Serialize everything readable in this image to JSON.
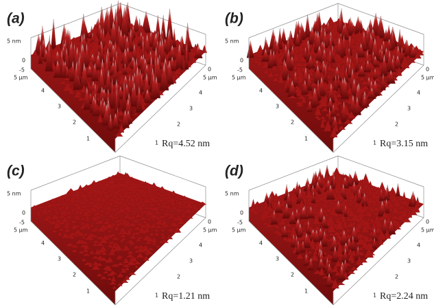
{
  "panels": [
    {
      "label": "(a)",
      "z_axis": [
        "5 nm",
        "0",
        "-5"
      ],
      "left_axis": [
        "5 μm",
        "4",
        "3",
        "2",
        "1"
      ],
      "right_axis": [
        "0",
        "5 μm",
        "4",
        "3",
        "2",
        "1"
      ],
      "roughness": "Rq=4.52 nm"
    },
    {
      "label": "(b)",
      "z_axis": [
        "5 nm",
        "0",
        "-5"
      ],
      "left_axis": [
        "5 μm",
        "4",
        "3",
        "2",
        "1"
      ],
      "right_axis": [
        "0",
        "5 μm",
        "4",
        "3",
        "2",
        "1"
      ],
      "roughness": "Rq=3.15 nm"
    },
    {
      "label": "(c)",
      "z_axis": [
        "5 nm",
        "0",
        "-5"
      ],
      "left_axis": [
        "5 μm",
        "4",
        "3",
        "2",
        "1"
      ],
      "right_axis": [
        "0",
        "5 μm",
        "4",
        "3",
        "2",
        "1"
      ],
      "roughness": "Rq=1.21 nm"
    },
    {
      "label": "(d)",
      "z_axis": [
        "5 nm",
        "0",
        "-5"
      ],
      "left_axis": [
        "5 μm",
        "4",
        "3",
        "2",
        "1"
      ],
      "right_axis": [
        "0",
        "5 μm",
        "4",
        "3",
        "2",
        "1"
      ],
      "roughness": "Rq=2.24 nm"
    }
  ]
}
